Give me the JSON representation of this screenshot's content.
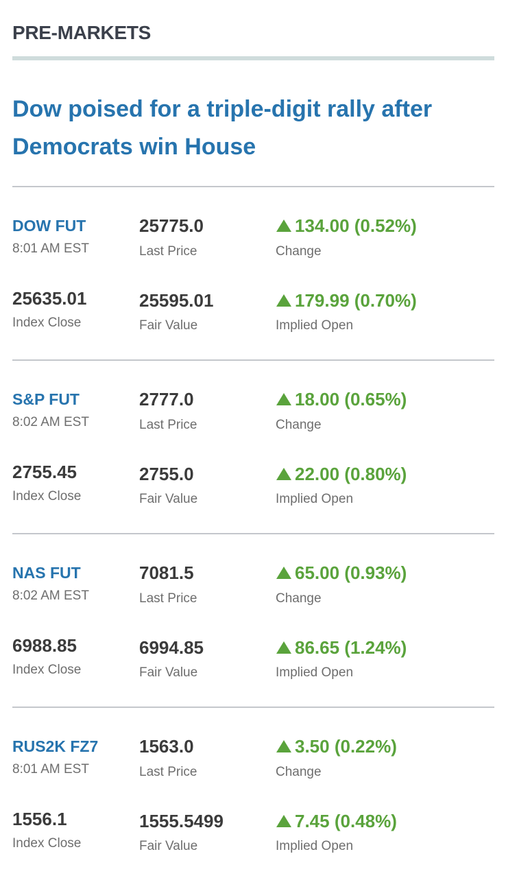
{
  "header": {
    "title": "PRE-MARKETS"
  },
  "headline": "Dow poised for a triple-digit rally after Democrats win House",
  "markets": [
    {
      "name": "DOW FUT",
      "time": "8:01 AM EST",
      "last_price": "25775.0",
      "last_price_label": "Last Price",
      "change": "134.00 (0.52%)",
      "change_label": "Change",
      "index_close": "25635.01",
      "index_close_label": "Index Close",
      "fair_value": "25595.01",
      "fair_value_label": "Fair Value",
      "implied_open": "179.99 (0.70%)",
      "implied_open_label": "Implied Open"
    },
    {
      "name": "S&P FUT",
      "time": "8:02 AM EST",
      "last_price": "2777.0",
      "last_price_label": "Last Price",
      "change": "18.00 (0.65%)",
      "change_label": "Change",
      "index_close": "2755.45",
      "index_close_label": "Index Close",
      "fair_value": "2755.0",
      "fair_value_label": "Fair Value",
      "implied_open": "22.00 (0.80%)",
      "implied_open_label": "Implied Open"
    },
    {
      "name": "NAS FUT",
      "time": "8:02 AM EST",
      "last_price": "7081.5",
      "last_price_label": "Last Price",
      "change": "65.00 (0.93%)",
      "change_label": "Change",
      "index_close": "6988.85",
      "index_close_label": "Index Close",
      "fair_value": "6994.85",
      "fair_value_label": "Fair Value",
      "implied_open": "86.65 (1.24%)",
      "implied_open_label": "Implied Open"
    },
    {
      "name": "RUS2K FZ7",
      "time": "8:01 AM EST",
      "last_price": "1563.0",
      "last_price_label": "Last Price",
      "change": "3.50 (0.22%)",
      "change_label": "Change",
      "index_close": "1556.1",
      "index_close_label": "Index Close",
      "fair_value": "1555.5499",
      "fair_value_label": "Fair Value",
      "implied_open": "7.45 (0.48%)",
      "implied_open_label": "Implied Open"
    }
  ]
}
